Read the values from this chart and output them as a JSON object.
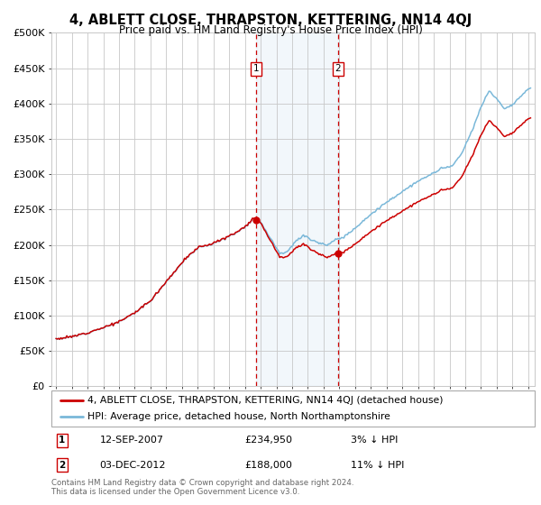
{
  "title": "4, ABLETT CLOSE, THRAPSTON, KETTERING, NN14 4QJ",
  "subtitle": "Price paid vs. HM Land Registry's House Price Index (HPI)",
  "sale1_date": "12-SEP-2007",
  "sale1_price": 234950,
  "sale1_year": 2007.71,
  "sale2_date": "03-DEC-2012",
  "sale2_price": 188000,
  "sale2_year": 2012.92,
  "legend_line1": "4, ABLETT CLOSE, THRAPSTON, KETTERING, NN14 4QJ (detached house)",
  "legend_line2": "HPI: Average price, detached house, North Northamptonshire",
  "footer": "Contains HM Land Registry data © Crown copyright and database right 2024.\nThis data is licensed under the Open Government Licence v3.0.",
  "hpi_color": "#7ab8d9",
  "price_color": "#cc0000",
  "bg_color": "#ffffff",
  "grid_color": "#c8c8c8",
  "highlight_color": "#ddeeff",
  "ylim": [
    0,
    500000
  ],
  "yticks": [
    0,
    50000,
    100000,
    150000,
    200000,
    250000,
    300000,
    350000,
    400000,
    450000,
    500000
  ],
  "xmin": 1994.7,
  "xmax": 2025.4,
  "hpi_anchors_t": [
    1995.0,
    1996.0,
    1997.0,
    1998.0,
    1999.0,
    2000.0,
    2001.0,
    2002.0,
    2003.0,
    2004.0,
    2005.0,
    2006.0,
    2007.0,
    2007.5,
    2008.0,
    2008.7,
    2009.2,
    2009.7,
    2010.2,
    2010.7,
    2011.2,
    2011.7,
    2012.2,
    2012.7,
    2013.2,
    2013.7,
    2014.5,
    2015.5,
    2016.5,
    2017.5,
    2018.5,
    2019.5,
    2020.2,
    2020.8,
    2021.5,
    2022.0,
    2022.5,
    2023.0,
    2023.5,
    2024.0,
    2024.5,
    2025.1
  ],
  "hpi_anchors_v": [
    67000,
    70000,
    76000,
    83000,
    91000,
    104000,
    121000,
    148000,
    175000,
    196000,
    202000,
    212000,
    225000,
    237000,
    232000,
    207000,
    188000,
    191000,
    205000,
    213000,
    208000,
    203000,
    200000,
    206000,
    211000,
    218000,
    234000,
    252000,
    268000,
    283000,
    296000,
    308000,
    312000,
    330000,
    365000,
    395000,
    418000,
    407000,
    393000,
    398000,
    410000,
    422000
  ]
}
